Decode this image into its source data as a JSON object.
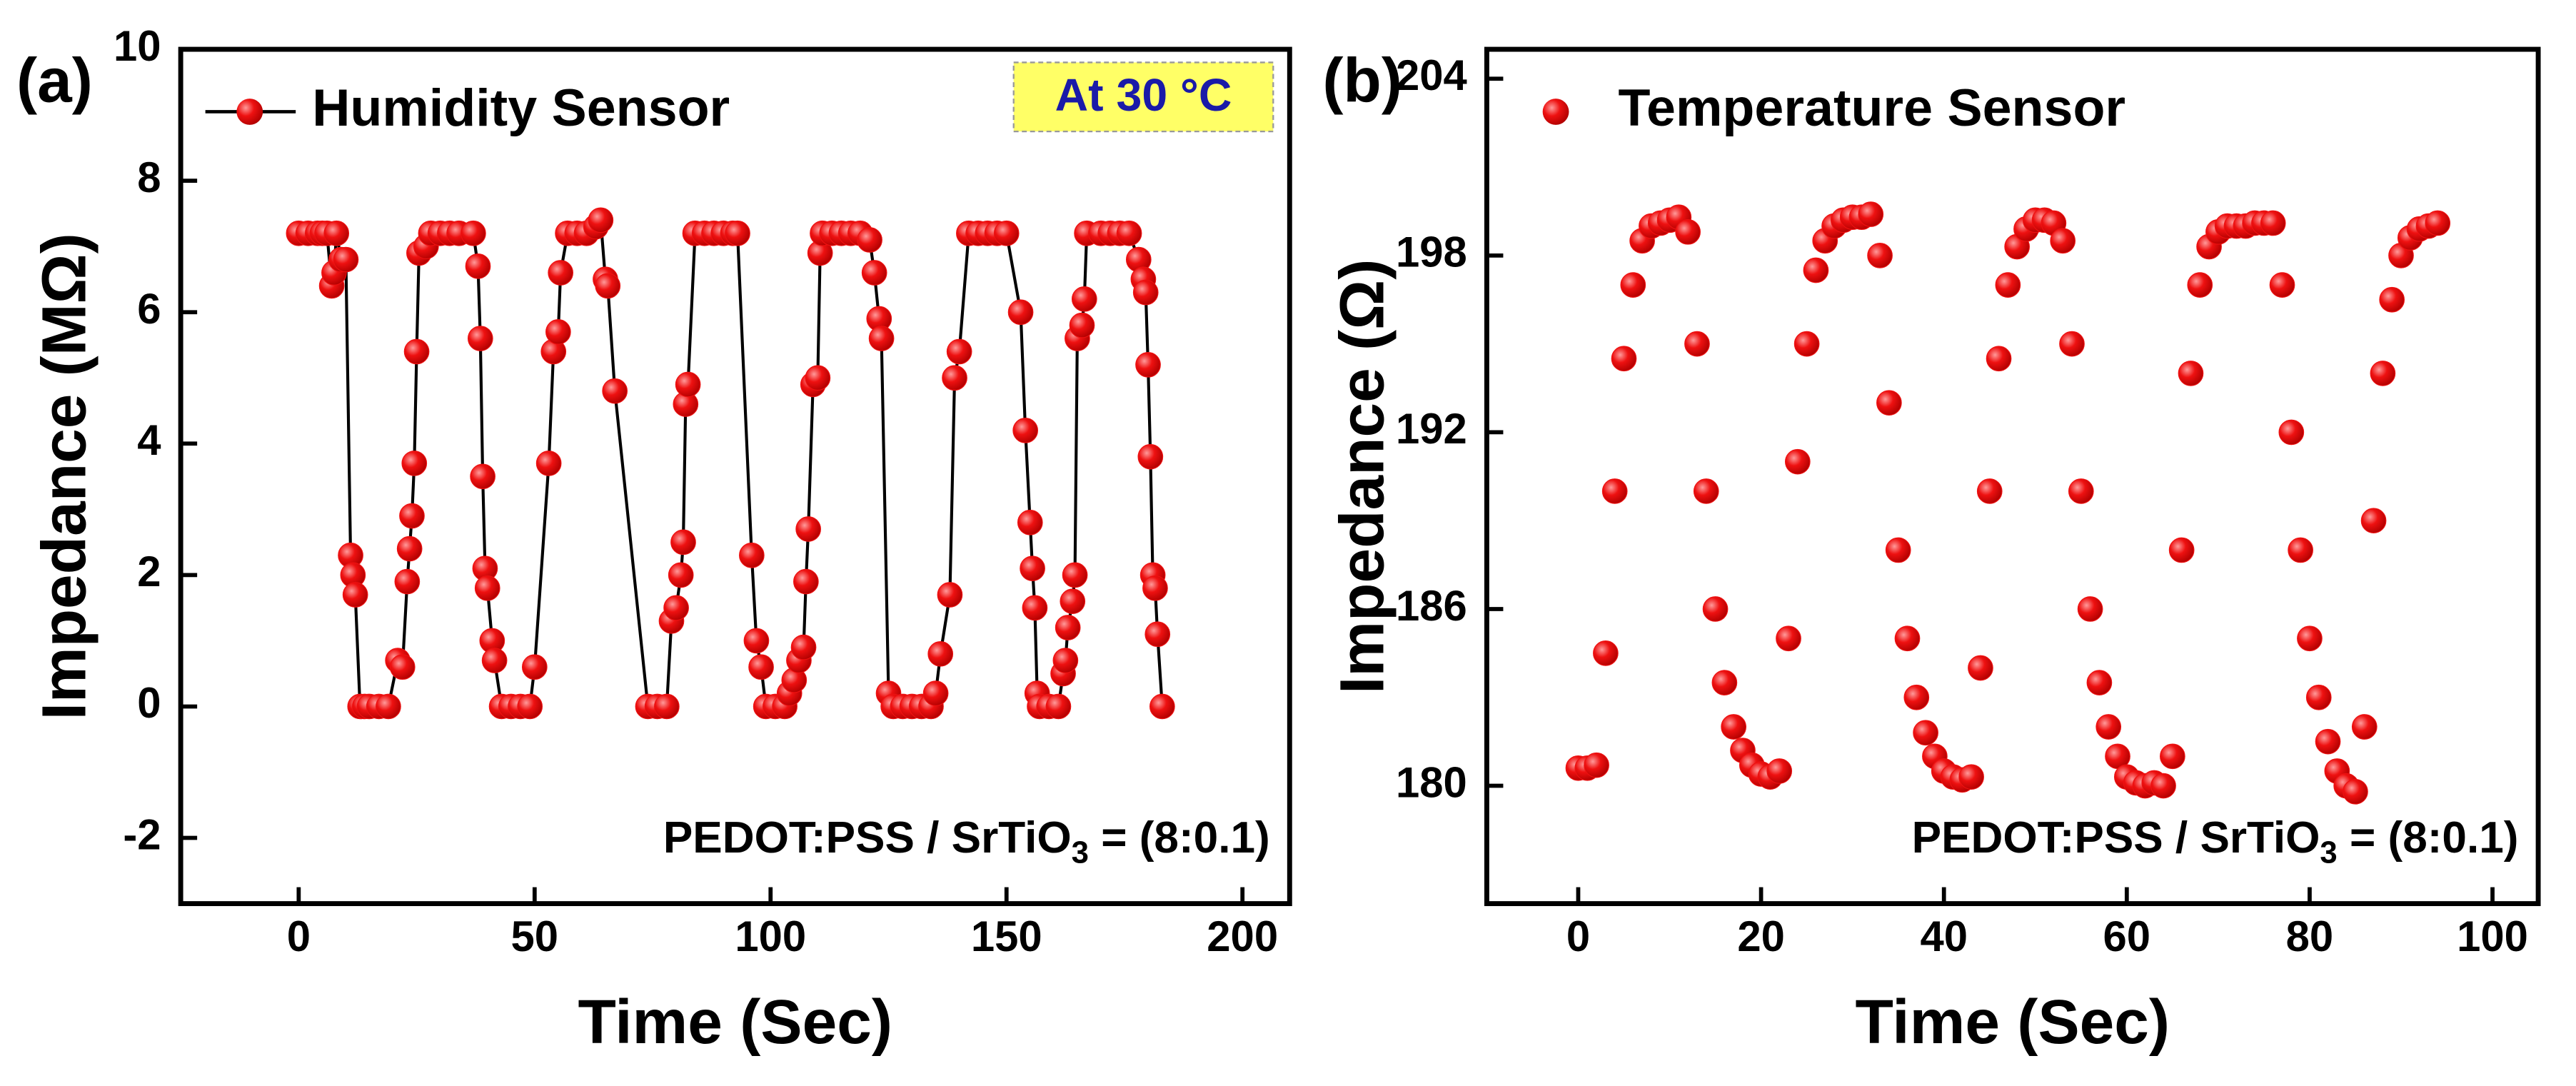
{
  "chart_data": [
    {
      "type": "line",
      "panel_label": "(a)",
      "xlabel": "Time (Sec)",
      "ylabel": "Impedance (MΩ)",
      "xlim": [
        -25,
        210
      ],
      "xticks": [
        0,
        50,
        100,
        150,
        200
      ],
      "ylim": [
        -3,
        10
      ],
      "yticks": [
        -2,
        0,
        2,
        4,
        6,
        8,
        10
      ],
      "legend": "upper left",
      "badge": "At 30 °C",
      "annotation_parts": [
        "PEDOT:PSS / SrTiO",
        "3",
        " = (8:0.1)"
      ],
      "series": [
        {
          "name": "Humidity Sensor",
          "color": "#ee1111",
          "line": true,
          "x": [
            0,
            2,
            4,
            5,
            6,
            7,
            7.5,
            8,
            9,
            10,
            11,
            11.5,
            12,
            13,
            14,
            15,
            17,
            19,
            21,
            22,
            23,
            23.5,
            24,
            24.5,
            25,
            25.5,
            27,
            28,
            30,
            32,
            34,
            37,
            38,
            38.5,
            39,
            39.5,
            40,
            41,
            41.5,
            43,
            45,
            47,
            49,
            50,
            53,
            54,
            55,
            55.5,
            57,
            59,
            61,
            63,
            64,
            65,
            65.5,
            67,
            74,
            76,
            78,
            79,
            80,
            81,
            81.5,
            82,
            82.5,
            84,
            86,
            88,
            90,
            92,
            93,
            96,
            97,
            98,
            99,
            101,
            103,
            104,
            105,
            106,
            107,
            107.5,
            108,
            109,
            110,
            110.5,
            111,
            113,
            115,
            117,
            119,
            121,
            122,
            123,
            123.5,
            125,
            126,
            128,
            130,
            132,
            134,
            135,
            136,
            138,
            139,
            140,
            142,
            144,
            146,
            148,
            150,
            153,
            154,
            155,
            155.5,
            156,
            156.5,
            157,
            159,
            161,
            162,
            162.5,
            163,
            164,
            164.5,
            165,
            166,
            166.5,
            167,
            170,
            172,
            174,
            176,
            178,
            179,
            179.5,
            180,
            180.5,
            181,
            181.5,
            182,
            183
          ],
          "values": [
            7.2,
            7.2,
            7.2,
            7.2,
            7.2,
            6.4,
            6.6,
            7.2,
            6.8,
            6.8,
            2.3,
            2.0,
            1.7,
            0,
            0,
            0,
            0,
            0,
            0.7,
            0.6,
            1.9,
            2.4,
            2.9,
            3.7,
            5.4,
            6.9,
            7.0,
            7.2,
            7.2,
            7.2,
            7.2,
            7.2,
            6.7,
            5.6,
            3.5,
            2.1,
            1.8,
            1.0,
            0.7,
            0,
            0,
            0,
            0,
            0.6,
            3.7,
            5.4,
            5.7,
            6.6,
            7.2,
            7.2,
            7.2,
            7.3,
            7.4,
            6.5,
            6.4,
            4.8,
            0,
            0,
            0,
            1.3,
            1.5,
            2.0,
            2.5,
            4.6,
            4.9,
            7.2,
            7.2,
            7.2,
            7.2,
            7.2,
            7.2,
            2.3,
            1.0,
            0.6,
            0,
            0,
            0,
            0.2,
            0.4,
            0.7,
            0.9,
            1.9,
            2.7,
            4.9,
            5.0,
            6.9,
            7.2,
            7.2,
            7.2,
            7.2,
            7.2,
            7.1,
            6.6,
            5.9,
            5.6,
            0.2,
            0,
            0,
            0,
            0,
            0,
            0.2,
            0.8,
            1.7,
            5.0,
            5.4,
            7.2,
            7.2,
            7.2,
            7.2,
            7.2,
            6.0,
            4.2,
            2.8,
            2.1,
            1.5,
            0.2,
            0,
            0,
            0,
            0.5,
            0.7,
            1.2,
            1.6,
            2.0,
            5.6,
            5.8,
            6.2,
            7.2,
            7.2,
            7.2,
            7.2,
            7.2,
            6.8,
            6.5,
            6.3,
            5.2,
            3.8,
            2.0,
            1.8,
            1.1,
            0
          ]
        }
      ]
    },
    {
      "type": "scatter",
      "panel_label": "(b)",
      "xlabel": "Time (Sec)",
      "ylabel": "Impedance (Ω)",
      "xlim": [
        -10,
        105
      ],
      "xticks": [
        0,
        20,
        40,
        60,
        80,
        100
      ],
      "ylim": [
        176,
        205
      ],
      "yticks": [
        180,
        186,
        192,
        198,
        204
      ],
      "legend": "upper left",
      "annotation_parts": [
        "PEDOT:PSS / SrTiO",
        "3",
        " = (8:0.1)"
      ],
      "series": [
        {
          "name": "Temperature Sensor",
          "color": "#ee1111",
          "line": false,
          "x": [
            0,
            1,
            2,
            3,
            4,
            5,
            6,
            7,
            8,
            9,
            10,
            11,
            12,
            13,
            14,
            15,
            16,
            17,
            18,
            19,
            20,
            21,
            22,
            23,
            24,
            25,
            26,
            27,
            28,
            29,
            30,
            31,
            32,
            33,
            34,
            35,
            36,
            37,
            38,
            39,
            40,
            41,
            42,
            43,
            44,
            45,
            46,
            47,
            48,
            49,
            50,
            51,
            52,
            53,
            54,
            55,
            56,
            57,
            58,
            59,
            60,
            61,
            62,
            63,
            64,
            65,
            66,
            67,
            68,
            69,
            70,
            71,
            72,
            73,
            74,
            75,
            76,
            77,
            78,
            79,
            80,
            81,
            82,
            83,
            84,
            85,
            86,
            87,
            88,
            89,
            90,
            91,
            92,
            93,
            94
          ],
          "values": [
            180.6,
            180.6,
            180.7,
            184.5,
            190,
            194.5,
            197,
            198.5,
            199,
            199.1,
            199.2,
            199.3,
            198.8,
            195,
            190,
            186,
            183.5,
            182,
            181.2,
            180.7,
            180.4,
            180.3,
            180.5,
            185,
            191,
            195,
            197.5,
            198.5,
            199,
            199.2,
            199.3,
            199.3,
            199.4,
            198,
            193,
            188,
            185,
            183,
            181.8,
            181,
            180.5,
            180.3,
            180.2,
            180.3,
            184,
            190,
            194.5,
            197,
            198.3,
            198.9,
            199.2,
            199.2,
            199.1,
            198.5,
            195,
            190,
            186,
            183.5,
            182,
            181,
            180.3,
            180.1,
            180,
            180.1,
            180,
            181,
            188,
            194,
            197,
            198.3,
            198.8,
            199,
            199,
            199,
            199.1,
            199.1,
            199.1,
            197,
            192,
            188,
            185,
            183,
            181.5,
            180.5,
            180,
            179.8,
            182,
            189,
            194,
            196.5,
            198,
            198.6,
            198.9,
            199,
            199.1
          ]
        }
      ]
    }
  ]
}
